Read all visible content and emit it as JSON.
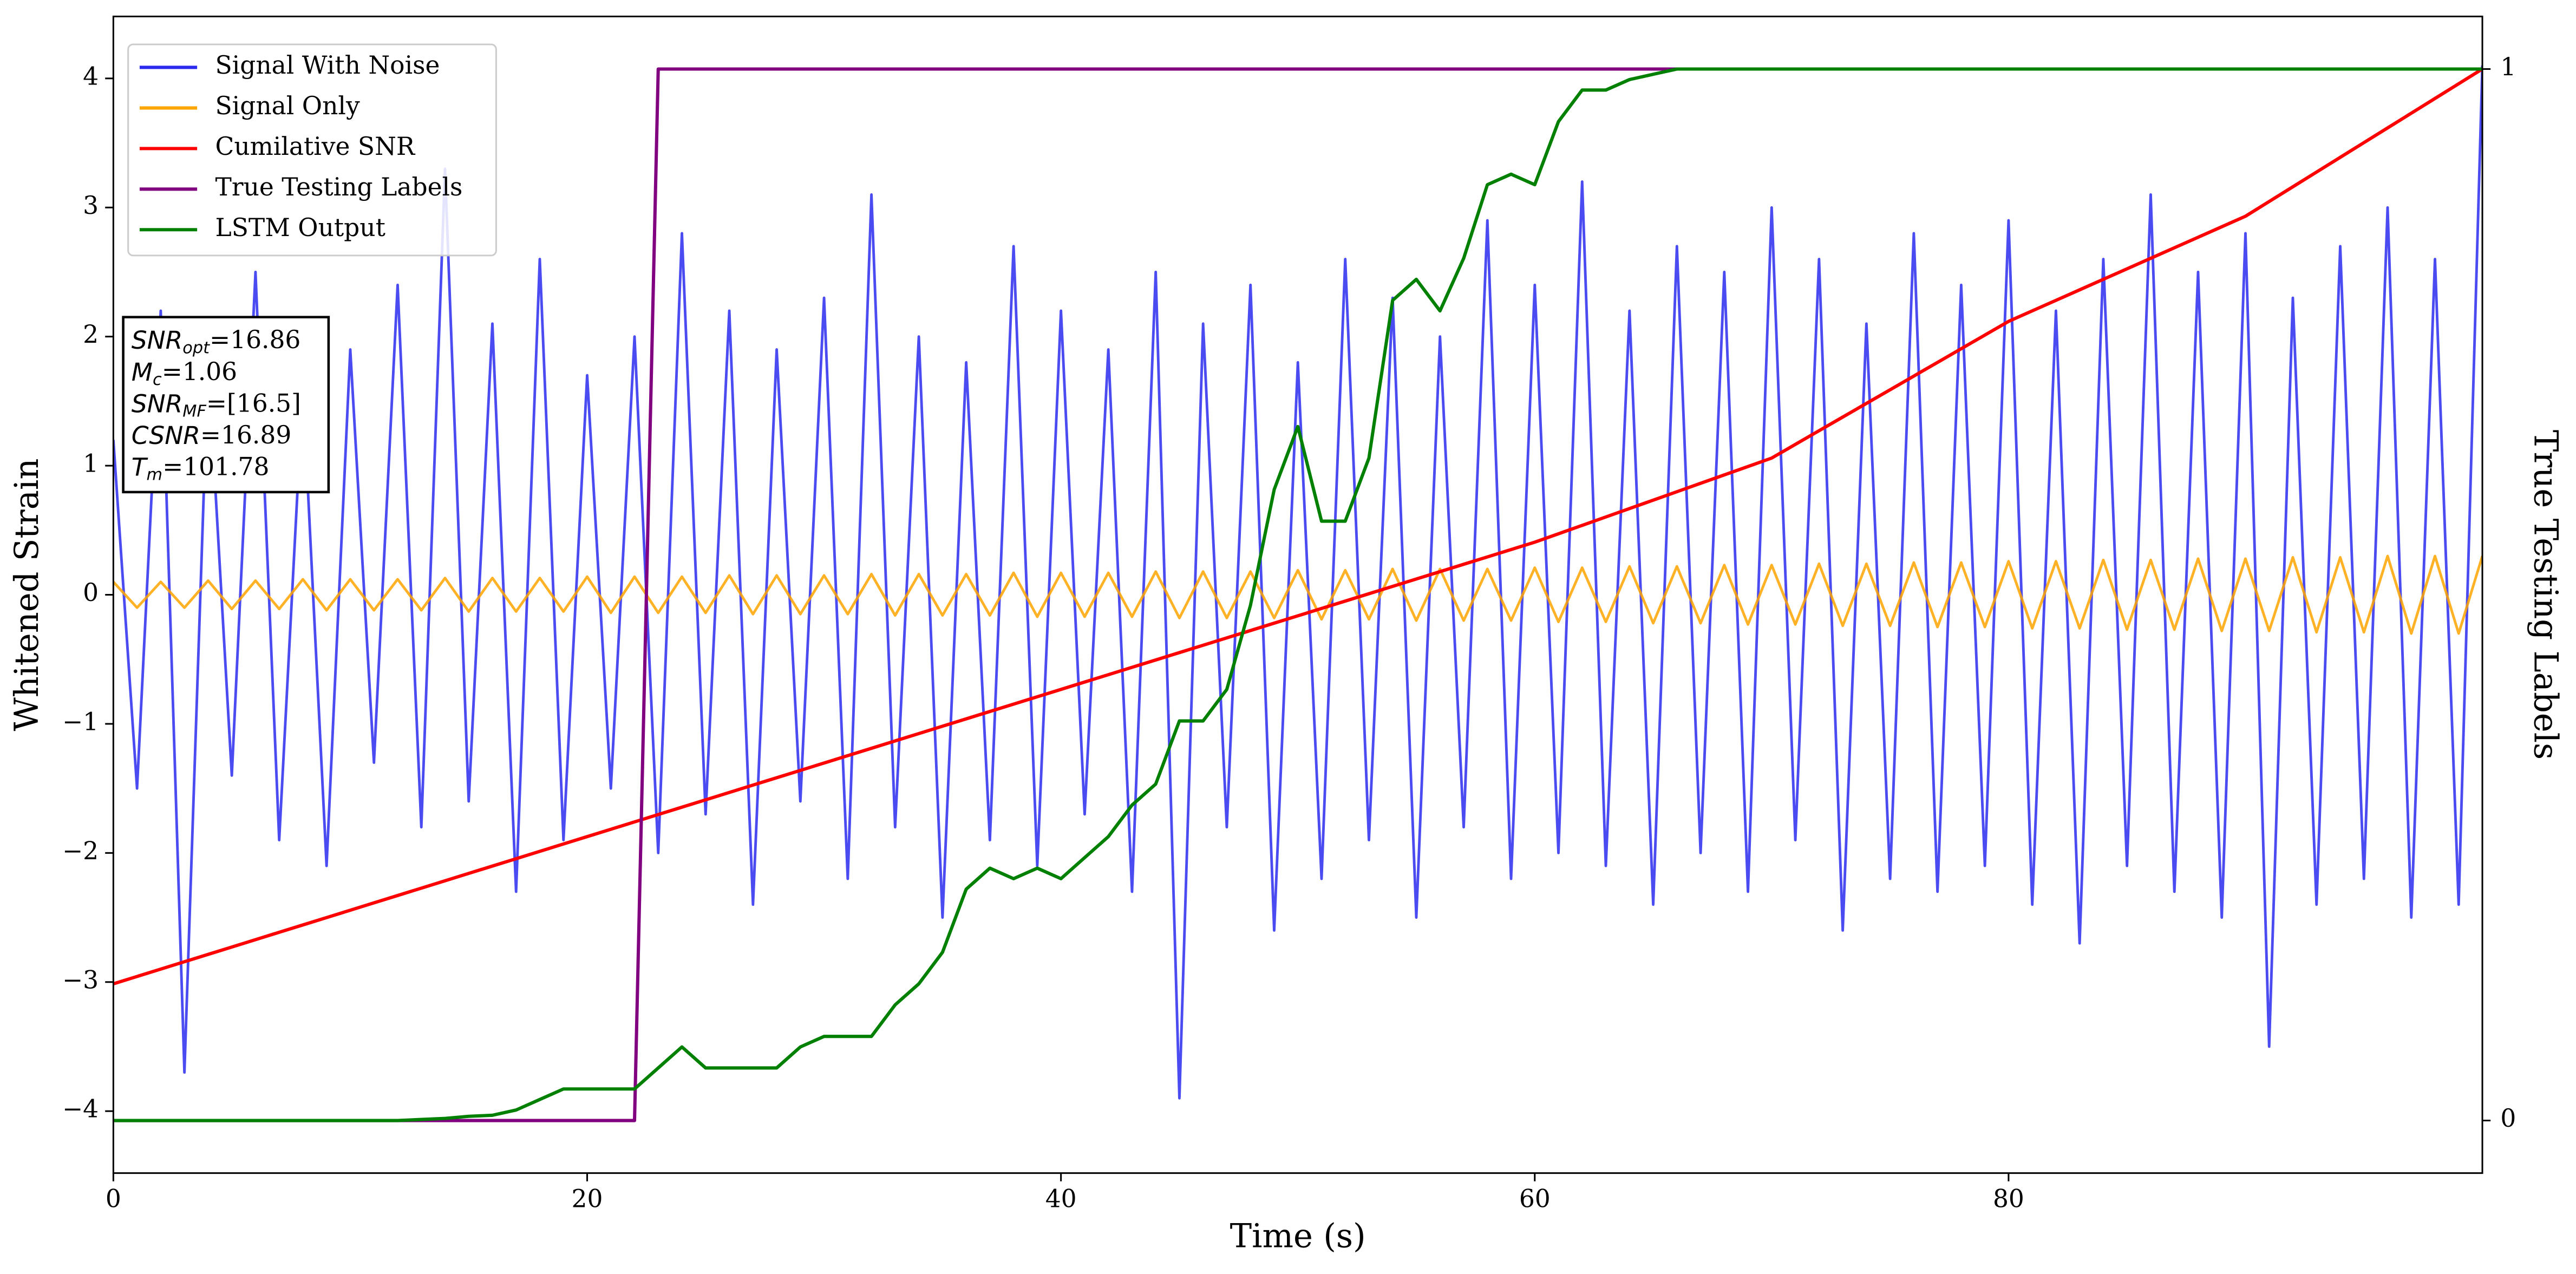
{
  "chart_data": {
    "type": "line",
    "x": [
      0,
      1,
      2,
      3,
      4,
      5,
      6,
      7,
      8,
      9,
      10,
      11,
      12,
      13,
      14,
      15,
      16,
      17,
      18,
      19,
      20,
      21,
      22,
      23,
      24,
      25,
      26,
      27,
      28,
      29,
      30,
      31,
      32,
      33,
      34,
      35,
      36,
      37,
      38,
      39,
      40,
      41,
      42,
      43,
      44,
      45,
      46,
      47,
      48,
      49,
      50,
      51,
      52,
      53,
      54,
      55,
      56,
      57,
      58,
      59,
      60,
      61,
      62,
      63,
      64,
      65,
      66,
      67,
      68,
      69,
      70,
      71,
      72,
      73,
      74,
      75,
      76,
      77,
      78,
      79,
      80,
      81,
      82,
      83,
      84,
      85,
      86,
      87,
      88,
      89,
      90,
      91,
      92,
      93,
      94,
      95,
      96,
      97,
      98,
      99,
      100
    ],
    "series": [
      {
        "name": "Signal With Noise",
        "color": "#2b2bf0",
        "values": [
          1.2,
          -1.5,
          2.2,
          -3.7,
          1.8,
          -1.4,
          2.5,
          -1.9,
          1.6,
          -2.1,
          1.9,
          -1.3,
          2.4,
          -1.8,
          3.3,
          -1.6,
          2.1,
          -2.3,
          2.6,
          -1.9,
          1.7,
          -1.5,
          2.0,
          -2.0,
          2.8,
          -1.7,
          2.2,
          -2.4,
          1.9,
          -1.6,
          2.3,
          -2.2,
          3.1,
          -1.8,
          2.0,
          -2.5,
          1.8,
          -1.9,
          2.7,
          -2.1,
          2.2,
          -1.7,
          1.9,
          -2.3,
          2.5,
          -3.9,
          2.1,
          -1.8,
          2.4,
          -2.6,
          1.8,
          -2.2,
          2.6,
          -1.9,
          2.3,
          -2.5,
          2.0,
          -1.8,
          2.9,
          -2.2,
          2.4,
          -2.0,
          3.2,
          -2.1,
          2.2,
          -2.4,
          2.7,
          -2.0,
          2.5,
          -2.3,
          3.0,
          -1.9,
          2.6,
          -2.6,
          2.1,
          -2.2,
          2.8,
          -2.3,
          2.4,
          -2.1,
          2.9,
          -2.4,
          2.2,
          -2.7,
          2.6,
          -2.1,
          3.1,
          -2.3,
          2.5,
          -2.5,
          2.8,
          -3.5,
          2.3,
          -2.4,
          2.7,
          -2.2,
          3.0,
          -2.5,
          2.6,
          -2.4,
          4.1
        ]
      },
      {
        "name": "Signal Only",
        "color": "#ffa500",
        "values": [
          0.1,
          -0.1,
          0.1,
          -0.1,
          0.11,
          -0.11,
          0.11,
          -0.11,
          0.12,
          -0.12,
          0.12,
          -0.12,
          0.12,
          -0.12,
          0.13,
          -0.13,
          0.13,
          -0.13,
          0.13,
          -0.13,
          0.14,
          -0.14,
          0.14,
          -0.14,
          0.14,
          -0.14,
          0.15,
          -0.15,
          0.15,
          -0.15,
          0.15,
          -0.15,
          0.16,
          -0.16,
          0.16,
          -0.16,
          0.16,
          -0.16,
          0.17,
          -0.17,
          0.17,
          -0.17,
          0.17,
          -0.17,
          0.18,
          -0.18,
          0.18,
          -0.18,
          0.18,
          -0.18,
          0.19,
          -0.19,
          0.19,
          -0.19,
          0.2,
          -0.2,
          0.2,
          -0.2,
          0.2,
          -0.2,
          0.21,
          -0.21,
          0.21,
          -0.21,
          0.22,
          -0.22,
          0.22,
          -0.22,
          0.23,
          -0.23,
          0.23,
          -0.23,
          0.24,
          -0.24,
          0.24,
          -0.24,
          0.25,
          -0.25,
          0.25,
          -0.25,
          0.26,
          -0.26,
          0.26,
          -0.26,
          0.27,
          -0.27,
          0.27,
          -0.27,
          0.28,
          -0.28,
          0.28,
          -0.28,
          0.29,
          -0.29,
          0.29,
          -0.29,
          0.3,
          -0.3,
          0.3,
          -0.3,
          0.3
        ]
      },
      {
        "name": "Cumilative SNR",
        "color": "#ff0000",
        "axis": "y2",
        "values": [
          0.13,
          0.137,
          0.144,
          0.151,
          0.158,
          0.165,
          0.172,
          0.179,
          0.186,
          0.193,
          0.2,
          0.207,
          0.214,
          0.221,
          0.228,
          0.235,
          0.242,
          0.249,
          0.256,
          0.263,
          0.27,
          0.277,
          0.284,
          0.291,
          0.298,
          0.305,
          0.312,
          0.319,
          0.326,
          0.333,
          0.34,
          0.347,
          0.354,
          0.361,
          0.368,
          0.375,
          0.382,
          0.389,
          0.396,
          0.403,
          0.41,
          0.417,
          0.424,
          0.431,
          0.438,
          0.445,
          0.452,
          0.459,
          0.466,
          0.473,
          0.48,
          0.487,
          0.494,
          0.501,
          0.508,
          0.515,
          0.522,
          0.529,
          0.536,
          0.543,
          0.55,
          0.558,
          0.566,
          0.574,
          0.582,
          0.59,
          0.598,
          0.606,
          0.614,
          0.622,
          0.63,
          0.643,
          0.656,
          0.669,
          0.682,
          0.695,
          0.708,
          0.721,
          0.734,
          0.747,
          0.76,
          0.77,
          0.78,
          0.79,
          0.8,
          0.81,
          0.82,
          0.83,
          0.84,
          0.85,
          0.86,
          0.874,
          0.888,
          0.902,
          0.916,
          0.93,
          0.944,
          0.958,
          0.972,
          0.986,
          1.0
        ]
      },
      {
        "name": "True Testing Labels",
        "color": "#800080",
        "axis": "y2",
        "values": [
          0,
          0,
          0,
          0,
          0,
          0,
          0,
          0,
          0,
          0,
          0,
          0,
          0,
          0,
          0,
          0,
          0,
          0,
          0,
          0,
          0,
          0,
          0,
          1,
          1,
          1,
          1,
          1,
          1,
          1,
          1,
          1,
          1,
          1,
          1,
          1,
          1,
          1,
          1,
          1,
          1,
          1,
          1,
          1,
          1,
          1,
          1,
          1,
          1,
          1,
          1,
          1,
          1,
          1,
          1,
          1,
          1,
          1,
          1,
          1,
          1,
          1,
          1,
          1,
          1,
          1,
          1,
          1,
          1,
          1,
          1,
          1,
          1,
          1,
          1,
          1,
          1,
          1,
          1,
          1,
          1,
          1,
          1,
          1,
          1,
          1,
          1,
          1,
          1,
          1,
          1,
          1,
          1,
          1,
          1,
          1,
          1,
          1,
          1,
          1,
          1
        ]
      },
      {
        "name": "LSTM Output",
        "color": "#008000",
        "axis": "y2",
        "values": [
          0,
          0,
          0,
          0,
          0,
          0,
          0,
          0,
          0,
          0,
          0,
          0,
          0,
          0.001,
          0.002,
          0.004,
          0.005,
          0.01,
          0.02,
          0.03,
          0.03,
          0.03,
          0.03,
          0.05,
          0.07,
          0.05,
          0.05,
          0.05,
          0.05,
          0.07,
          0.08,
          0.08,
          0.08,
          0.11,
          0.13,
          0.16,
          0.22,
          0.24,
          0.23,
          0.24,
          0.23,
          0.25,
          0.27,
          0.3,
          0.32,
          0.38,
          0.38,
          0.41,
          0.49,
          0.6,
          0.66,
          0.57,
          0.57,
          0.63,
          0.78,
          0.8,
          0.77,
          0.82,
          0.89,
          0.9,
          0.89,
          0.95,
          0.98,
          0.98,
          0.99,
          0.995,
          1,
          1,
          1,
          1,
          1,
          1,
          1,
          1,
          1,
          1,
          1,
          1,
          1,
          1,
          1,
          1,
          1,
          1,
          1,
          1,
          1,
          1,
          1,
          1,
          1,
          1,
          1,
          1,
          1,
          1,
          1,
          1,
          1,
          1,
          1
        ]
      }
    ],
    "xlabel": "Time (s)",
    "ylabel": "Whitened Strain",
    "y2label": "True Testing Labels",
    "xlim": [
      0,
      100
    ],
    "xticks": [
      0,
      20,
      40,
      60,
      80
    ],
    "ylim": [
      -4.48,
      4.48
    ],
    "yticks": [
      {
        "value": -4,
        "label": "−4"
      },
      {
        "value": -3,
        "label": "−3"
      },
      {
        "value": -2,
        "label": "−2"
      },
      {
        "value": -1,
        "label": "−1"
      },
      0,
      1,
      2,
      3,
      4
    ],
    "y2lim": [
      -0.05,
      1.05
    ],
    "y2ticks": [
      0,
      1
    ],
    "legend": "upper left",
    "annotation": [
      {
        "text": "SNR",
        "sub": "opt",
        "rest": "=16.86"
      },
      {
        "text": "M",
        "sub": "c",
        "rest": "=1.06"
      },
      {
        "text": "SNR",
        "sub": "MF",
        "rest": "=[16.5]"
      },
      {
        "text": "CSNR",
        "rest": "=16.89"
      },
      {
        "text": "T",
        "sub": "m",
        "rest": "=101.78"
      }
    ]
  }
}
